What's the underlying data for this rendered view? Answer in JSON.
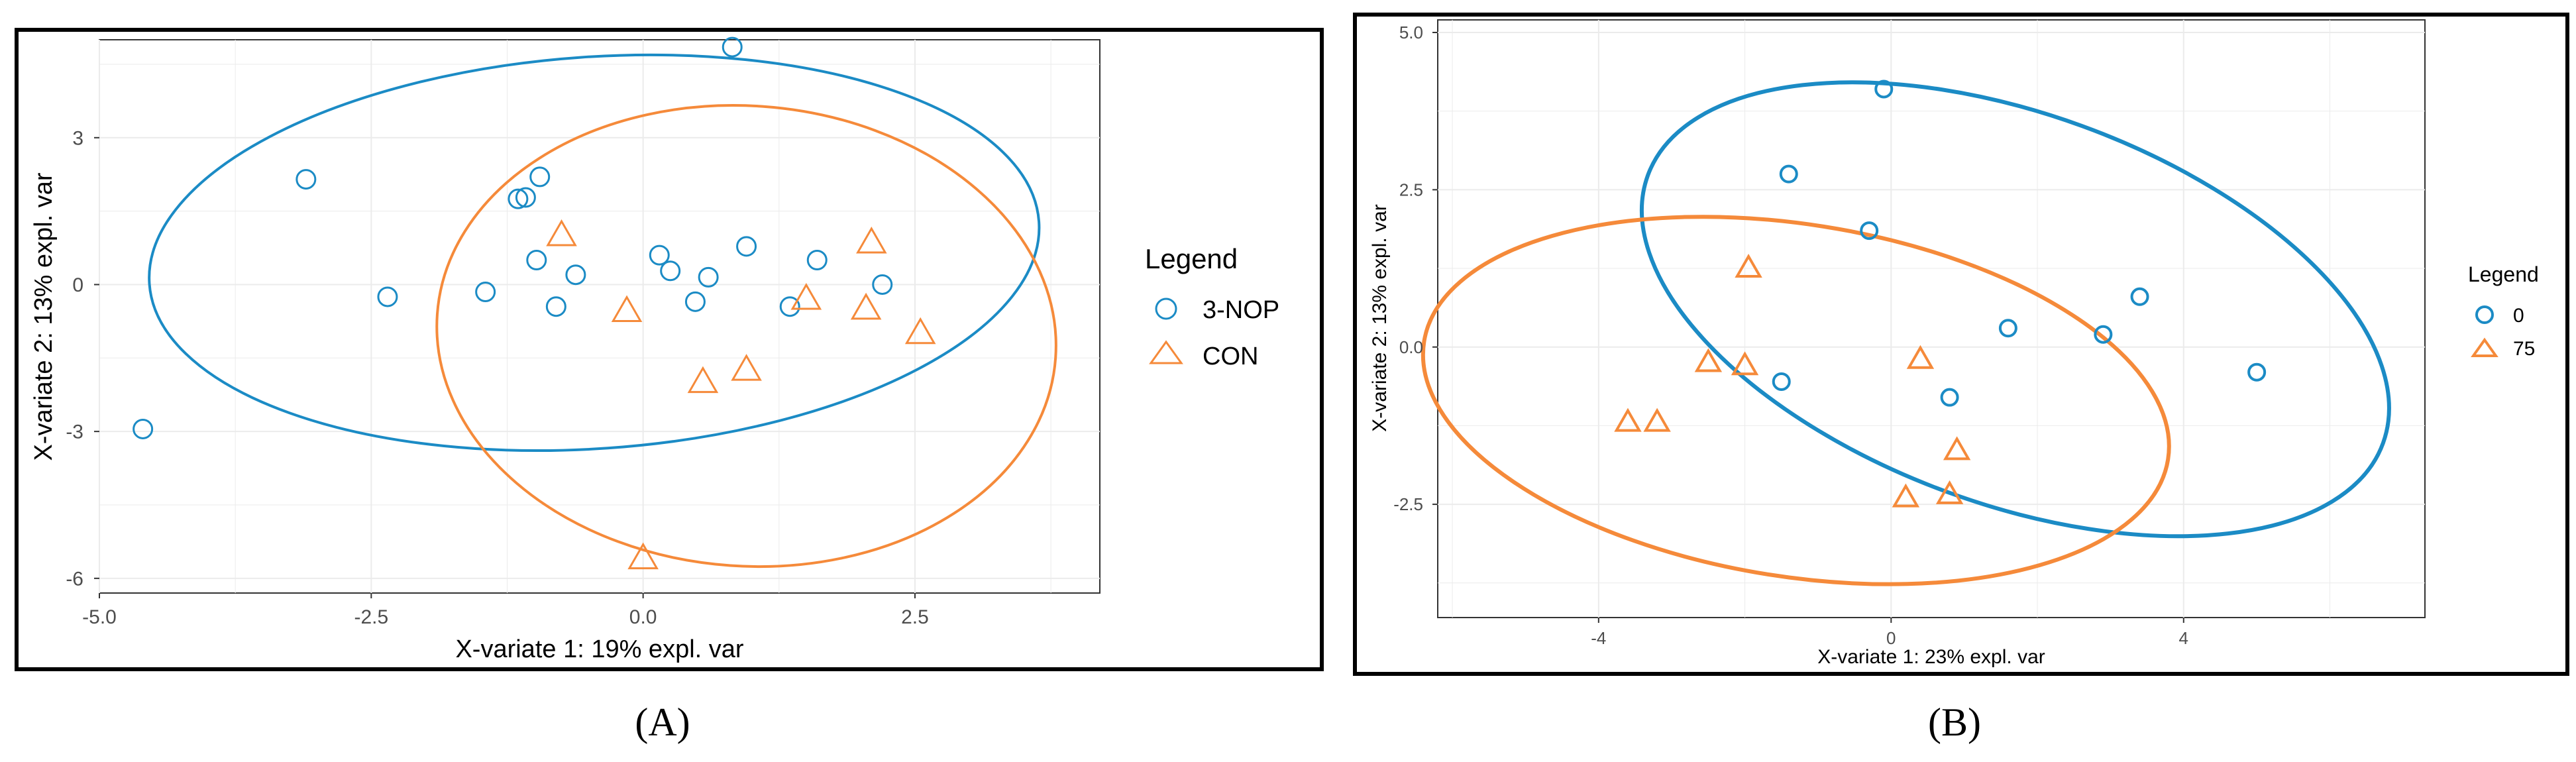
{
  "colors": {
    "blue": "#1b8bc5",
    "orange": "#f58a3a",
    "grid": "#ebebeb",
    "axis_text": "#4d4d4d",
    "border": "#000000"
  },
  "chart_data": [
    {
      "type": "scatter",
      "panel_label": "(A)",
      "xlabel": "X-variate 1: 19% expl. var",
      "ylabel": "X-variate 2: 13% expl. var",
      "xlim": [
        -5.0,
        4.2
      ],
      "ylim": [
        -6.3,
        5.0
      ],
      "xticks": [
        -5.0,
        -2.5,
        0.0,
        2.5
      ],
      "xtick_labels": [
        "-5.0",
        "-2.5",
        "0.0",
        "2.5"
      ],
      "yticks": [
        -6,
        -3,
        0,
        3
      ],
      "ytick_labels": [
        "-6",
        "-3",
        "0",
        "3"
      ],
      "legend_title": "Legend",
      "series": [
        {
          "name": "3-NOP",
          "marker": "circle",
          "color": "#1b8bc5",
          "points": [
            {
              "x": -4.6,
              "y": -2.95
            },
            {
              "x": -3.1,
              "y": 2.15
            },
            {
              "x": -2.35,
              "y": -0.25
            },
            {
              "x": -1.45,
              "y": -0.15
            },
            {
              "x": -1.15,
              "y": 1.75
            },
            {
              "x": -1.08,
              "y": 1.78
            },
            {
              "x": -0.95,
              "y": 2.2
            },
            {
              "x": -0.98,
              "y": 0.5
            },
            {
              "x": -0.8,
              "y": -0.45
            },
            {
              "x": -0.62,
              "y": 0.2
            },
            {
              "x": 0.15,
              "y": 0.6
            },
            {
              "x": 0.25,
              "y": 0.28
            },
            {
              "x": 0.48,
              "y": -0.35
            },
            {
              "x": 0.6,
              "y": 0.15
            },
            {
              "x": 0.82,
              "y": 4.85
            },
            {
              "x": 0.95,
              "y": 0.78
            },
            {
              "x": 1.35,
              "y": -0.45
            },
            {
              "x": 1.6,
              "y": 0.5
            },
            {
              "x": 2.2,
              "y": 0.0
            }
          ],
          "ellipse": {
            "cx": -0.45,
            "cy": 0.65,
            "rx": 4.1,
            "ry": 4.0,
            "angle_deg": 4
          }
        },
        {
          "name": "CON",
          "marker": "triangle",
          "color": "#f58a3a",
          "points": [
            {
              "x": -0.75,
              "y": 1.0
            },
            {
              "x": -0.15,
              "y": -0.55
            },
            {
              "x": 0.0,
              "y": -5.6
            },
            {
              "x": 0.55,
              "y": -2.0
            },
            {
              "x": 0.95,
              "y": -1.75
            },
            {
              "x": 1.5,
              "y": -0.3
            },
            {
              "x": 2.05,
              "y": -0.5
            },
            {
              "x": 2.1,
              "y": 0.85
            },
            {
              "x": 2.55,
              "y": -1.0
            }
          ],
          "ellipse": {
            "cx": 0.95,
            "cy": -1.05,
            "rx": 2.85,
            "ry": 4.7,
            "angle_deg": -4
          }
        }
      ]
    },
    {
      "type": "scatter",
      "panel_label": "(B)",
      "xlabel": "X-variate 1: 23% expl. var",
      "ylabel": "X-variate 2: 13% expl. var",
      "xlim": [
        -6.2,
        7.3
      ],
      "ylim": [
        -4.3,
        5.2
      ],
      "xticks": [
        -4,
        0,
        4
      ],
      "xtick_labels": [
        "-4",
        "0",
        "4"
      ],
      "yticks": [
        -2.5,
        0.0,
        2.5,
        5.0
      ],
      "ytick_labels": [
        "-2.5",
        "0.0",
        "2.5",
        "5.0"
      ],
      "legend_title": "Legend",
      "series": [
        {
          "name": "0",
          "marker": "circle",
          "color": "#1b8bc5",
          "points": [
            {
              "x": -1.4,
              "y": 2.75
            },
            {
              "x": -0.1,
              "y": 4.1
            },
            {
              "x": -0.3,
              "y": 1.85
            },
            {
              "x": -1.5,
              "y": -0.55
            },
            {
              "x": 0.8,
              "y": -0.8
            },
            {
              "x": 1.6,
              "y": 0.3
            },
            {
              "x": 2.9,
              "y": 0.2
            },
            {
              "x": 3.4,
              "y": 0.8
            },
            {
              "x": 5.0,
              "y": -0.4
            }
          ],
          "ellipse": {
            "cx": 1.7,
            "cy": 0.6,
            "rx": 5.35,
            "ry": 3.1,
            "angle_deg": -20
          }
        },
        {
          "name": "75",
          "marker": "triangle",
          "color": "#f58a3a",
          "points": [
            {
              "x": -3.6,
              "y": -1.2
            },
            {
              "x": -3.2,
              "y": -1.2
            },
            {
              "x": -2.5,
              "y": -0.25
            },
            {
              "x": -2.0,
              "y": -0.3
            },
            {
              "x": -1.95,
              "y": 1.25
            },
            {
              "x": 0.2,
              "y": -2.4
            },
            {
              "x": 0.4,
              "y": -0.2
            },
            {
              "x": 0.8,
              "y": -2.35
            },
            {
              "x": 0.9,
              "y": -1.65
            }
          ],
          "ellipse": {
            "cx": -1.3,
            "cy": -0.85,
            "rx": 5.15,
            "ry": 2.8,
            "angle_deg": -9
          }
        }
      ]
    }
  ]
}
